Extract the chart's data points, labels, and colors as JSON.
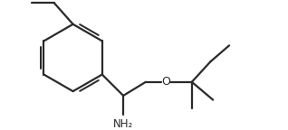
{
  "line_color": "#2a2a2a",
  "bg_color": "#ffffff",
  "lw": 1.6,
  "nh2_label": "NH₂",
  "o_label": "O",
  "font_size": 8.5,
  "fig_width": 3.18,
  "fig_height": 1.44,
  "dpi": 100,
  "xlim": [
    0.0,
    10.5
  ],
  "ylim": [
    0.5,
    5.2
  ]
}
